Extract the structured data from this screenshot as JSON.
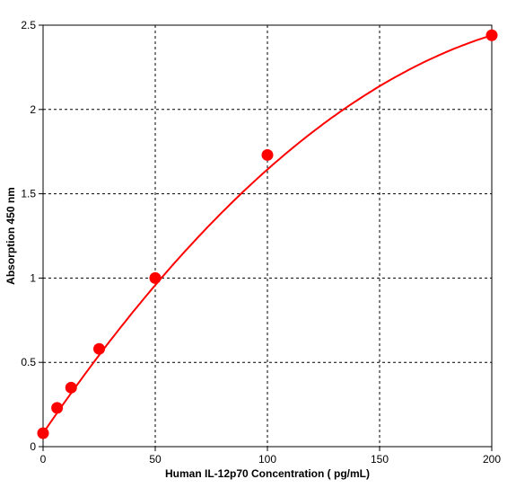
{
  "chart_data": {
    "type": "scatter",
    "xlabel": "Human IL-12p70 Concentration ( pg/mL)",
    "ylabel": "Absorption 450 nm",
    "xlim": [
      0,
      200
    ],
    "ylim": [
      0,
      2.5
    ],
    "x_ticks": [
      {
        "value": 0,
        "label": "0"
      },
      {
        "value": 50,
        "label": "50"
      },
      {
        "value": 100,
        "label": "100"
      },
      {
        "value": 150,
        "label": "150"
      },
      {
        "value": 200,
        "label": "200"
      }
    ],
    "y_ticks": [
      {
        "value": 0,
        "label": "0"
      },
      {
        "value": 0.5,
        "label": "0.5"
      },
      {
        "value": 1,
        "label": "1"
      },
      {
        "value": 1.5,
        "label": "1.5"
      },
      {
        "value": 2,
        "label": "2"
      },
      {
        "value": 2.5,
        "label": "2.5"
      }
    ],
    "grid": true,
    "series": [
      {
        "color": "#ff0000",
        "points": [
          {
            "x": 0,
            "y": 0.08
          },
          {
            "x": 6.25,
            "y": 0.23
          },
          {
            "x": 12.5,
            "y": 0.35
          },
          {
            "x": 25,
            "y": 0.58
          },
          {
            "x": 50,
            "y": 1.0
          },
          {
            "x": 100,
            "y": 1.73
          },
          {
            "x": 200,
            "y": 2.44
          }
        ],
        "fit_curve": {
          "type": "quadratic",
          "coefficients": [
            0.08,
            0.01948,
            -3.84e-05
          ]
        }
      }
    ]
  }
}
